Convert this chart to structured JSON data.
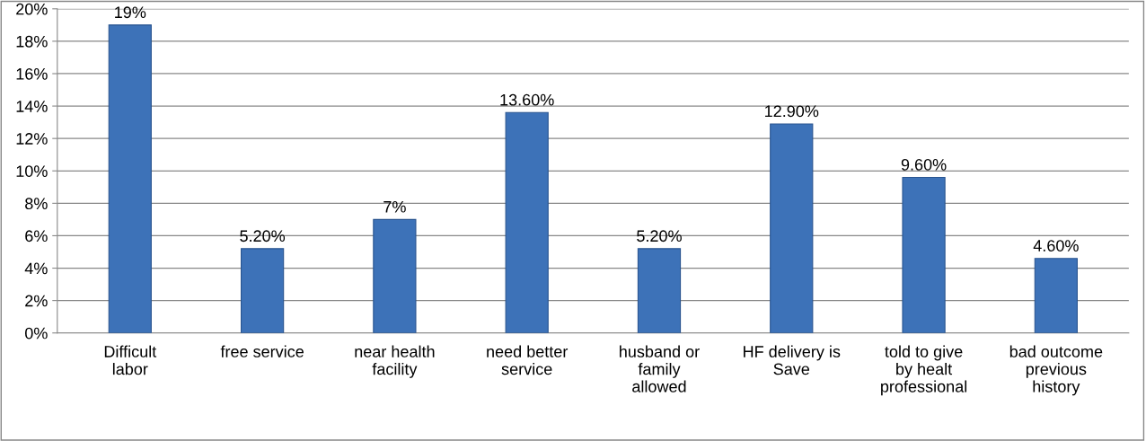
{
  "chart_data": {
    "type": "bar",
    "categories": [
      "Difficult\nlabor",
      "free service",
      "near health\nfacility",
      "need better\nservice",
      "husband or\nfamily\nallowed",
      "HF delivery is\nSave",
      "told to give\nby healt\nprofessional",
      "bad outcome\nprevious\nhistory"
    ],
    "values": [
      19,
      5.2,
      7,
      13.6,
      5.2,
      12.9,
      9.6,
      4.6
    ],
    "value_labels": [
      "19%",
      "5.20%",
      "7%",
      "13.60%",
      "5.20%",
      "12.90%",
      "9.60%",
      "4.60%"
    ],
    "color": "#3d72b8",
    "ylim": [
      0,
      20
    ],
    "yticks": [
      {
        "value": 0,
        "label": "0%"
      },
      {
        "value": 2,
        "label": "2%"
      },
      {
        "value": 4,
        "label": "4%"
      },
      {
        "value": 6,
        "label": "6%"
      },
      {
        "value": 8,
        "label": "8%"
      },
      {
        "value": 10,
        "label": "10%"
      },
      {
        "value": 12,
        "label": "12%"
      },
      {
        "value": 14,
        "label": "14%"
      },
      {
        "value": 16,
        "label": "16%"
      },
      {
        "value": 18,
        "label": "18%"
      },
      {
        "value": 20,
        "label": "20%"
      }
    ],
    "grid": "y"
  }
}
